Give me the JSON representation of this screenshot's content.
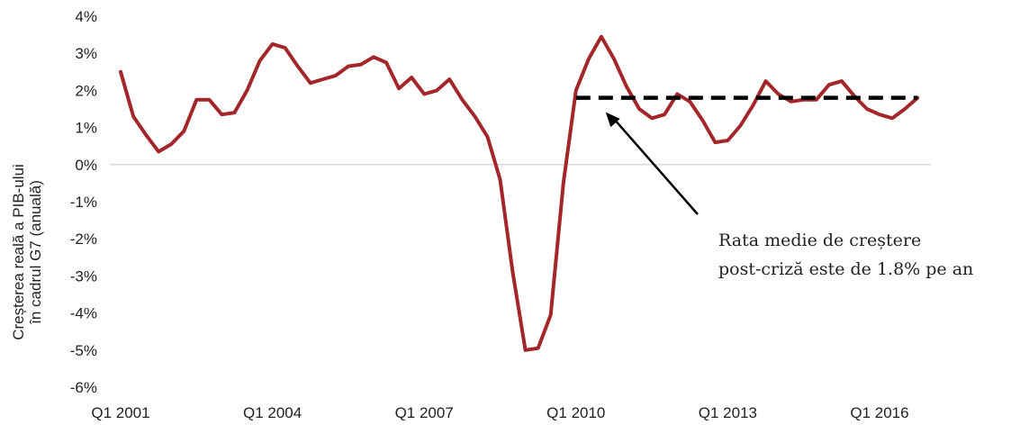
{
  "chart_data": {
    "type": "line",
    "title": "",
    "xlabel": "",
    "ylabel_lines": [
      "Creșterea reală a PIB-ului",
      "în cadrul G7 (anuală)"
    ],
    "x_tick_labels": [
      "Q1 2001",
      "Q1 2004",
      "Q1 2007",
      "Q1 2010",
      "Q1 2013",
      "Q1 2016"
    ],
    "y_tick_labels": [
      "4%",
      "3%",
      "2%",
      "1%",
      "0%",
      "-1%",
      "-2%",
      "-3%",
      "-4%",
      "-5%",
      "-6%"
    ],
    "ylim": [
      -6,
      4
    ],
    "grid": "zero-line only",
    "series": [
      {
        "color": "#a3262a",
        "x": [
          "Q1 2001",
          "Q2 2001",
          "Q3 2001",
          "Q4 2001",
          "Q1 2002",
          "Q2 2002",
          "Q3 2002",
          "Q4 2002",
          "Q1 2003",
          "Q2 2003",
          "Q3 2003",
          "Q4 2003",
          "Q1 2004",
          "Q2 2004",
          "Q3 2004",
          "Q4 2004",
          "Q1 2005",
          "Q2 2005",
          "Q3 2005",
          "Q4 2005",
          "Q1 2006",
          "Q2 2006",
          "Q3 2006",
          "Q4 2006",
          "Q1 2007",
          "Q2 2007",
          "Q3 2007",
          "Q4 2007",
          "Q1 2008",
          "Q2 2008",
          "Q3 2008",
          "Q4 2008",
          "Q1 2009",
          "Q2 2009",
          "Q3 2009",
          "Q4 2009",
          "Q1 2010",
          "Q2 2010",
          "Q3 2010",
          "Q4 2010",
          "Q1 2011",
          "Q2 2011",
          "Q3 2011",
          "Q4 2011",
          "Q1 2012",
          "Q2 2012",
          "Q3 2012",
          "Q4 2012",
          "Q1 2013",
          "Q2 2013",
          "Q3 2013",
          "Q4 2013",
          "Q1 2014",
          "Q2 2014",
          "Q3 2014",
          "Q4 2014",
          "Q1 2015",
          "Q2 2015",
          "Q3 2015",
          "Q4 2015",
          "Q1 2016",
          "Q2 2016",
          "Q3 2016",
          "Q4 2016"
        ],
        "values": [
          2.5,
          1.3,
          0.8,
          0.35,
          0.55,
          0.9,
          1.75,
          1.75,
          1.35,
          1.4,
          2.0,
          2.8,
          3.25,
          3.15,
          2.65,
          2.2,
          2.3,
          2.4,
          2.65,
          2.7,
          2.9,
          2.75,
          2.05,
          2.35,
          1.9,
          2.0,
          2.3,
          1.75,
          1.3,
          0.75,
          -0.4,
          -2.9,
          -5.0,
          -4.95,
          -4.05,
          -0.5,
          2.0,
          2.85,
          3.45,
          2.85,
          2.1,
          1.5,
          1.25,
          1.35,
          1.9,
          1.7,
          1.2,
          0.6,
          0.65,
          1.05,
          1.6,
          2.25,
          1.9,
          1.7,
          1.75,
          1.75,
          2.15,
          2.25,
          1.85,
          1.5,
          1.35,
          1.25,
          1.5,
          1.8
        ]
      }
    ],
    "reference_line": {
      "label": "Rata medie de creștere post-criză",
      "value": 1.8,
      "from_index": 36,
      "to_index": 63,
      "style": "dashed",
      "color": "#000000"
    },
    "annotation": {
      "lines": [
        "Rata medie de creștere",
        "post-criză este de 1.8% pe an"
      ]
    }
  }
}
